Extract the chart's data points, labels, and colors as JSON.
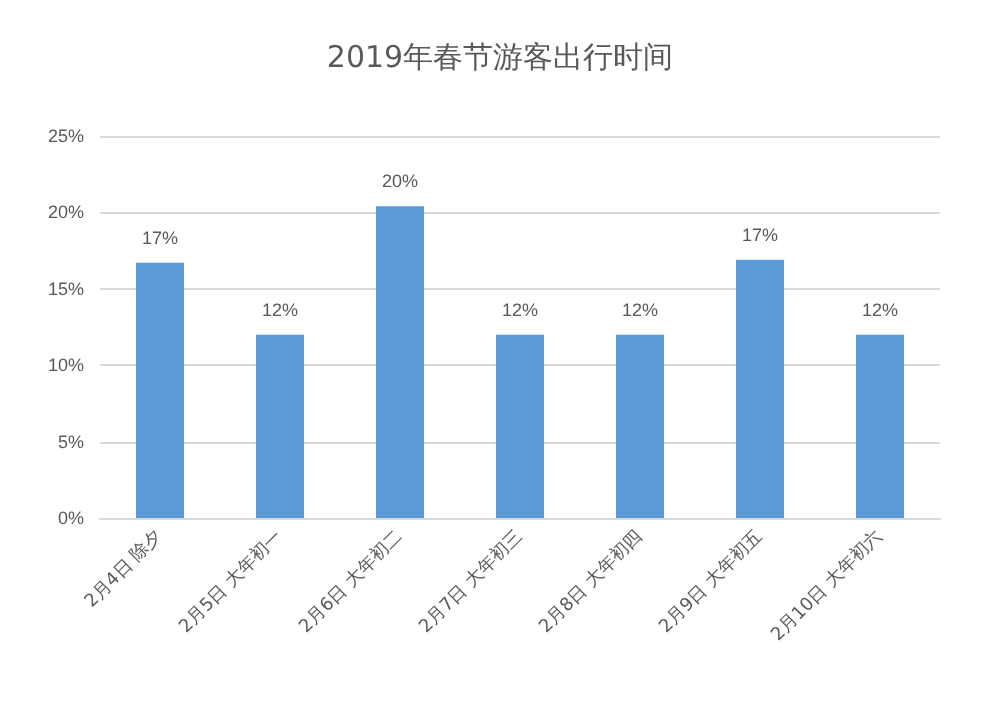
{
  "chart_data": {
    "type": "bar",
    "title": "2019年春节游客出行时间",
    "categories": [
      "2月4日 除夕",
      "2月5日 大年初一",
      "2月6日 大年初二",
      "2月7日 大年初三",
      "2月8日 大年初四",
      "2月9日 大年初五",
      "2月10日 大年初六"
    ],
    "values": [
      16.7,
      12,
      20.4,
      12,
      12,
      16.9,
      12
    ],
    "value_labels": [
      "17%",
      "12%",
      "20%",
      "12%",
      "12%",
      "17%",
      "12%"
    ],
    "color": "#5b9bd5",
    "ylim": [
      0,
      25
    ],
    "yticks": [
      {
        "value": 0,
        "label": "0%"
      },
      {
        "value": 5,
        "label": "5%"
      },
      {
        "value": 10,
        "label": "10%"
      },
      {
        "value": 15,
        "label": "15%"
      },
      {
        "value": 20,
        "label": "20%"
      },
      {
        "value": 25,
        "label": "25%"
      }
    ],
    "grid": "y"
  }
}
